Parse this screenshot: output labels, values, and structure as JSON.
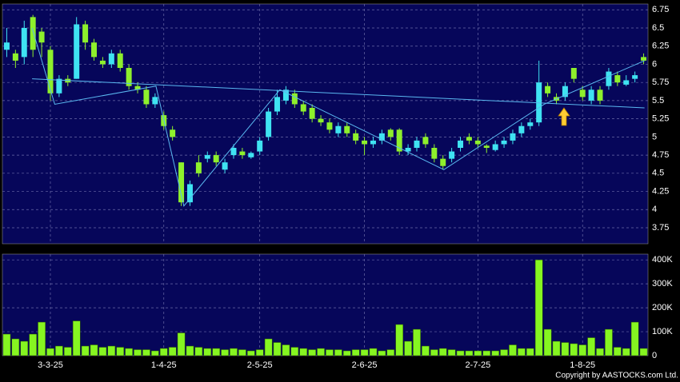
{
  "chart_data": [
    {
      "type": "candlestick",
      "open": [
        6.2,
        6.15,
        6.1,
        6.65,
        6.45,
        6.2,
        5.6,
        5.8,
        5.8,
        6.55,
        6.3,
        6.05,
        6.0,
        6.15,
        5.95,
        5.7,
        5.65,
        5.45,
        5.3,
        5.1,
        4.65,
        4.1,
        4.65,
        4.7,
        4.75,
        4.55,
        4.75,
        4.8,
        4.72,
        4.8,
        5.0,
        5.35,
        5.5,
        5.6,
        5.45,
        5.4,
        5.25,
        5.2,
        5.05,
        5.15,
        5.05,
        4.95,
        4.9,
        4.95,
        5.1,
        5.1,
        4.8,
        4.85,
        5.0,
        4.85,
        4.7,
        4.7,
        4.85,
        5.0,
        4.95,
        4.88,
        4.82,
        4.9,
        4.95,
        5.05,
        5.15,
        5.2,
        5.7,
        5.55,
        5.55,
        5.95,
        5.65,
        5.5,
        5.65,
        5.7,
        5.85,
        5.72,
        5.8,
        6.1
      ],
      "high": [
        6.5,
        6.2,
        6.6,
        6.68,
        6.5,
        6.25,
        5.85,
        5.85,
        6.65,
        6.6,
        6.35,
        6.1,
        6.2,
        6.2,
        6.0,
        5.75,
        5.7,
        5.6,
        5.35,
        5.15,
        4.65,
        4.4,
        4.75,
        4.8,
        4.8,
        4.7,
        4.9,
        4.85,
        4.8,
        5.0,
        5.4,
        5.65,
        5.7,
        5.65,
        5.5,
        5.45,
        5.3,
        5.25,
        5.2,
        5.2,
        5.1,
        5.0,
        5.0,
        5.1,
        5.12,
        5.12,
        4.9,
        5.0,
        5.05,
        4.9,
        4.75,
        4.85,
        5.0,
        5.05,
        5.0,
        4.9,
        4.95,
        5.0,
        5.1,
        5.2,
        5.25,
        6.05,
        5.75,
        5.6,
        5.75,
        5.95,
        5.7,
        5.7,
        5.7,
        5.95,
        5.9,
        5.85,
        5.9,
        6.15
      ],
      "low": [
        6.1,
        5.95,
        6.0,
        6.1,
        6.1,
        5.5,
        5.55,
        5.7,
        5.8,
        6.2,
        6.05,
        5.95,
        5.95,
        5.9,
        5.65,
        5.6,
        5.4,
        5.4,
        5.1,
        4.95,
        4.05,
        4.05,
        4.45,
        4.65,
        4.6,
        4.5,
        4.7,
        4.7,
        4.7,
        4.75,
        4.95,
        5.3,
        5.45,
        5.4,
        5.3,
        5.2,
        5.15,
        5.05,
        5.0,
        5.0,
        4.9,
        4.75,
        4.85,
        4.9,
        4.95,
        4.75,
        4.75,
        4.8,
        4.85,
        4.65,
        4.55,
        4.65,
        4.8,
        4.9,
        4.85,
        4.78,
        4.8,
        4.85,
        4.9,
        5.0,
        5.1,
        5.15,
        5.55,
        5.45,
        5.5,
        5.75,
        5.5,
        5.45,
        5.45,
        5.65,
        5.7,
        5.7,
        5.75,
        6.0
      ],
      "close": [
        6.3,
        6.05,
        6.5,
        6.2,
        6.3,
        5.6,
        5.8,
        5.75,
        6.55,
        6.3,
        6.1,
        6.0,
        6.15,
        5.95,
        5.7,
        5.65,
        5.45,
        5.55,
        5.15,
        5.0,
        4.1,
        4.35,
        4.5,
        4.75,
        4.65,
        4.65,
        4.85,
        4.75,
        4.78,
        4.95,
        5.35,
        5.55,
        5.65,
        5.45,
        5.35,
        5.25,
        5.2,
        5.1,
        5.15,
        5.05,
        4.95,
        4.9,
        4.95,
        5.05,
        5.0,
        4.8,
        4.85,
        4.95,
        4.9,
        4.7,
        4.6,
        4.8,
        4.95,
        4.95,
        4.9,
        4.85,
        4.9,
        4.95,
        5.05,
        5.15,
        5.2,
        5.75,
        5.6,
        5.5,
        5.7,
        5.8,
        5.55,
        5.65,
        5.5,
        5.9,
        5.75,
        5.78,
        5.85,
        6.05
      ],
      "up_color": "#3fe3f2",
      "down_color": "#8ef02c",
      "lines": [
        {
          "color": "#5ab8f0",
          "x": [
            2.9,
            73.1
          ],
          "values": [
            5.8,
            5.4
          ]
        },
        {
          "color": "#5ab8f0",
          "x": [
            2.9,
            5.5,
            17.1,
            20.3,
            31.3,
            50.1,
            61.6,
            73.1
          ],
          "values": [
            6.5,
            5.45,
            5.7,
            4.05,
            5.65,
            4.55,
            5.45,
            6.05
          ]
        }
      ],
      "ylim": [
        3.53,
        6.83
      ],
      "yticks": [
        3.75,
        4,
        4.25,
        4.5,
        4.75,
        5,
        5.25,
        5.5,
        5.75,
        6,
        6.25,
        6.5,
        6.75
      ],
      "grid": true
    },
    {
      "type": "bar",
      "categories": [
        null,
        null,
        null,
        null,
        null,
        "3-3-25",
        null,
        null,
        null,
        null,
        null,
        null,
        null,
        null,
        null,
        null,
        null,
        null,
        "1-4-25",
        null,
        null,
        null,
        null,
        null,
        null,
        null,
        null,
        null,
        null,
        "2-5-25",
        null,
        null,
        null,
        null,
        null,
        null,
        null,
        null,
        null,
        null,
        null,
        "2-6-25",
        null,
        null,
        null,
        null,
        null,
        null,
        null,
        null,
        null,
        null,
        null,
        null,
        "2-7-25",
        null,
        null,
        null,
        null,
        null,
        null,
        null,
        null,
        null,
        null,
        null,
        "1-8-25",
        null,
        null,
        null,
        null,
        null,
        null,
        null
      ],
      "values": [
        90000,
        70000,
        60000,
        90000,
        140000,
        30000,
        40000,
        35000,
        145000,
        40000,
        45000,
        35000,
        40000,
        35000,
        30000,
        25000,
        25000,
        20000,
        30000,
        35000,
        95000,
        40000,
        35000,
        30000,
        30000,
        25000,
        30000,
        25000,
        20000,
        25000,
        70000,
        55000,
        45000,
        35000,
        30000,
        25000,
        30000,
        25000,
        25000,
        20000,
        25000,
        25000,
        30000,
        20000,
        25000,
        130000,
        60000,
        110000,
        40000,
        25000,
        30000,
        25000,
        20000,
        20000,
        20000,
        20000,
        20000,
        25000,
        45000,
        30000,
        30000,
        400000,
        110000,
        60000,
        55000,
        50000,
        45000,
        75000,
        30000,
        110000,
        35000,
        30000,
        140000,
        30000
      ],
      "color": "#86f521",
      "ylim": [
        0,
        424000
      ],
      "yticks": [
        0,
        {
          "value": 100000,
          "label": "100K"
        },
        {
          "value": 200000,
          "label": "200K"
        },
        {
          "value": 300000,
          "label": "300K"
        },
        {
          "value": 400000,
          "label": "400K"
        }
      ],
      "grid": true,
      "credit": "Copyright by AASTOCKS.com Ltd."
    }
  ]
}
